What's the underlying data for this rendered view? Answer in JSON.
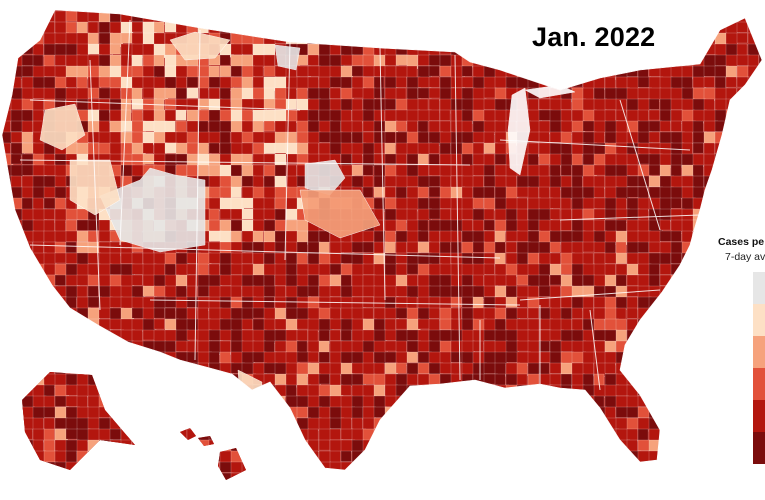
{
  "map": {
    "title": "Jan. 2022",
    "colors": {
      "no_data": "#e6e6e6",
      "level_1": "#fde0c5",
      "level_2": "#f6a27c",
      "level_3": "#e2513a",
      "level_4": "#b3160e",
      "level_5": "#7b0c0c",
      "borders": "#ffffff"
    }
  },
  "legend": {
    "title": "Cases pe",
    "subtitle": "7-day av",
    "swatch_colors": [
      "#e6e6e6",
      "#fde0c5",
      "#f6a27c",
      "#e2513a",
      "#b3160e",
      "#7b0c0c"
    ]
  }
}
